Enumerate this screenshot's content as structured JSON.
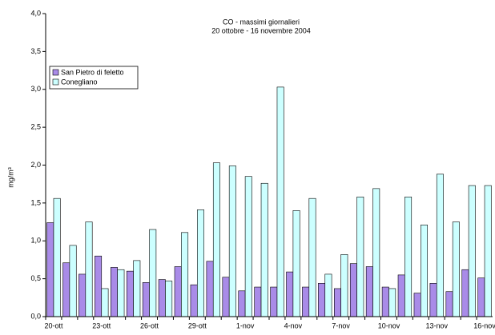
{
  "chart_data": {
    "type": "bar",
    "title": "CO - massimi giornalieri",
    "subtitle": "20 ottobre - 16 novembre 2004",
    "y_label": "mg/m³",
    "categories": [
      "20-ott",
      null,
      null,
      "23-ott",
      null,
      null,
      "26-ott",
      null,
      null,
      "29-ott",
      null,
      null,
      "1-nov",
      null,
      null,
      "4-nov",
      null,
      null,
      "7-nov",
      null,
      null,
      "10-nov",
      null,
      null,
      "13-nov",
      null,
      null,
      "16-nov"
    ],
    "series": [
      {
        "name": "San Pietro di feletto",
        "color": "#a98be8",
        "values": [
          1.24,
          0.71,
          0.56,
          0.8,
          0.65,
          0.6,
          0.45,
          0.49,
          0.66,
          0.42,
          0.73,
          0.52,
          0.34,
          0.39,
          0.39,
          0.59,
          0.39,
          0.44,
          0.37,
          0.7,
          0.66,
          0.39,
          0.55,
          0.31,
          0.44,
          0.33,
          0.62,
          0.51
        ]
      },
      {
        "name": "Conegliano",
        "color": "#ccffff",
        "values": [
          1.56,
          0.94,
          1.25,
          0.37,
          0.62,
          0.74,
          1.15,
          0.47,
          1.11,
          1.41,
          2.03,
          1.99,
          1.85,
          1.76,
          3.03,
          1.4,
          1.56,
          0.56,
          0.82,
          1.58,
          1.69,
          0.37,
          1.58,
          1.21,
          1.88,
          1.25,
          1.73,
          1.73
        ]
      }
    ],
    "ylim": [
      0,
      4
    ],
    "yticks": [
      {
        "value": 0,
        "label": "0,0"
      },
      {
        "value": 0.5,
        "label": "0,5"
      },
      {
        "value": 1,
        "label": "1,0"
      },
      {
        "value": 1.5,
        "label": "1,5"
      },
      {
        "value": 2,
        "label": "2,0"
      },
      {
        "value": 2.5,
        "label": "2,5"
      },
      {
        "value": 3,
        "label": "3,0"
      },
      {
        "value": 3.5,
        "label": "3,5"
      },
      {
        "value": 4,
        "label": "4,0"
      }
    ],
    "legend": "upper left",
    "grid": false
  }
}
